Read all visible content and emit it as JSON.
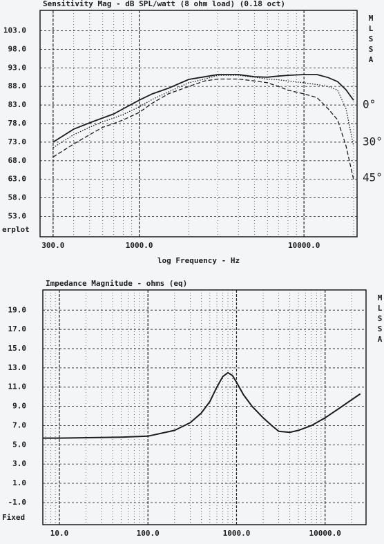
{
  "chart_data": [
    {
      "type": "line",
      "title": "Sensitivity Mag - dB SPL/watt (8 ohm load) (0.18 oct)",
      "x_label": "log Frequency - Hz",
      "corner_label": "erplot",
      "side_letters": [
        "M",
        "L",
        "S",
        "S",
        "A"
      ],
      "x_log": true,
      "grid": true,
      "xlim": [
        250,
        21000
      ],
      "xticks": [
        {
          "value": 300,
          "label": "300.0"
        },
        {
          "value": 1000,
          "label": "1000.0"
        },
        {
          "value": 10000,
          "label": "10000.0"
        }
      ],
      "ylim": [
        47.5,
        108.5
      ],
      "yticks": [
        {
          "value": 53,
          "label": "53.0"
        },
        {
          "value": 58,
          "label": "58.0"
        },
        {
          "value": 63,
          "label": "63.0"
        },
        {
          "value": 68,
          "label": "68.0"
        },
        {
          "value": 73,
          "label": "73.0"
        },
        {
          "value": 78,
          "label": "78.0"
        },
        {
          "value": 83,
          "label": "83.0"
        },
        {
          "value": 88,
          "label": "88.0"
        },
        {
          "value": 93,
          "label": "93.0"
        },
        {
          "value": 98,
          "label": "98.0"
        },
        {
          "value": 103,
          "label": "103.0"
        }
      ],
      "x": [
        300,
        400,
        500,
        600,
        700,
        800,
        1000,
        1200,
        1500,
        2000,
        2500,
        3000,
        4000,
        5000,
        6000,
        7000,
        8000,
        10000,
        12000,
        14000,
        16000,
        18000,
        20000
      ],
      "series": [
        {
          "name": "0°",
          "color": "#1c1c1c",
          "dash": "solid",
          "values": [
            73,
            76.5,
            78.2,
            79.5,
            80.6,
            82,
            84.3,
            86,
            87.5,
            89.9,
            90.6,
            91.2,
            91.2,
            90.6,
            90.5,
            90.8,
            91,
            91.2,
            91.2,
            90.4,
            89.3,
            87.1,
            84.3
          ]
        },
        {
          "name": "30°",
          "color": "#1c1c1c",
          "dash": "dotted",
          "values": [
            71.5,
            75,
            77,
            78.5,
            79.5,
            80.5,
            82.5,
            84.5,
            86.5,
            89,
            90,
            91,
            91,
            90.5,
            90,
            89.8,
            89.5,
            89,
            88.5,
            88,
            87,
            82,
            72
          ]
        },
        {
          "name": "45°",
          "color": "#1c1c1c",
          "dash": "dashed",
          "values": [
            69,
            72.5,
            75,
            77,
            78,
            79,
            81,
            83.5,
            86,
            88,
            89.5,
            90,
            90,
            89.5,
            89,
            88,
            87,
            86,
            85,
            82,
            79,
            72,
            63
          ]
        }
      ]
    },
    {
      "type": "line",
      "title": "Impedance Magnitude - ohms (eq)",
      "corner_label": "Fixed",
      "side_letters": [
        "M",
        "L",
        "S",
        "S",
        "A"
      ],
      "x_log": true,
      "grid": true,
      "xlim": [
        6.5,
        29000
      ],
      "xticks": [
        {
          "value": 10,
          "label": "10.0"
        },
        {
          "value": 100,
          "label": "100.0"
        },
        {
          "value": 1000,
          "label": "1000.0"
        },
        {
          "value": 10000,
          "label": "10000.0"
        }
      ],
      "ylim": [
        -3.3,
        21.1
      ],
      "yticks": [
        {
          "value": -1,
          "label": "-1.0"
        },
        {
          "value": 1,
          "label": "1.0"
        },
        {
          "value": 3,
          "label": "3.0"
        },
        {
          "value": 5,
          "label": "5.0"
        },
        {
          "value": 7,
          "label": "7.0"
        },
        {
          "value": 9,
          "label": "9.0"
        },
        {
          "value": 11,
          "label": "11.0"
        },
        {
          "value": 13,
          "label": "13.0"
        },
        {
          "value": 15,
          "label": "15.0"
        },
        {
          "value": 17,
          "label": "17.0"
        },
        {
          "value": 19,
          "label": "19.0"
        }
      ],
      "x": [
        6.5,
        10,
        50,
        100,
        200,
        300,
        400,
        500,
        600,
        700,
        800,
        900,
        1000,
        1200,
        1500,
        2000,
        2500,
        3000,
        4000,
        5000,
        7000,
        10000,
        15000,
        20000,
        25000
      ],
      "values": [
        5.7,
        5.7,
        5.8,
        5.9,
        6.5,
        7.3,
        8.3,
        9.5,
        11,
        12.1,
        12.5,
        12.2,
        11.5,
        10.2,
        9,
        7.8,
        7,
        6.4,
        6.3,
        6.5,
        7,
        7.8,
        8.9,
        9.7,
        10.3
      ],
      "color": "#1c1c1c"
    }
  ]
}
